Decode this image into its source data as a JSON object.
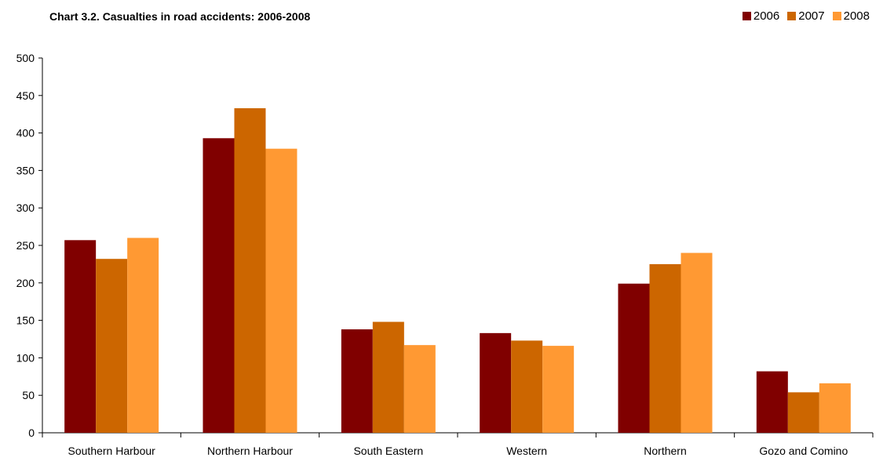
{
  "chart_data": {
    "type": "bar",
    "title": "Chart 3.2. Casualties in road accidents: 2006-2008",
    "xlabel": "",
    "ylabel": "",
    "ylim": [
      0,
      500
    ],
    "yticks": [
      0,
      50,
      100,
      150,
      200,
      250,
      300,
      350,
      400,
      450,
      500
    ],
    "grid": false,
    "legend_position": "top-right",
    "categories": [
      "Southern Harbour",
      "Northern Harbour",
      "South Eastern",
      "Western",
      "Northern",
      "Gozo and Comino"
    ],
    "series": [
      {
        "name": "2006",
        "color": "#800000",
        "values": [
          257,
          393,
          138,
          133,
          199,
          82
        ]
      },
      {
        "name": "2007",
        "color": "#cc6600",
        "values": [
          232,
          433,
          148,
          123,
          225,
          54
        ]
      },
      {
        "name": "2008",
        "color": "#ff9933",
        "values": [
          260,
          379,
          117,
          116,
          240,
          66
        ]
      }
    ]
  }
}
